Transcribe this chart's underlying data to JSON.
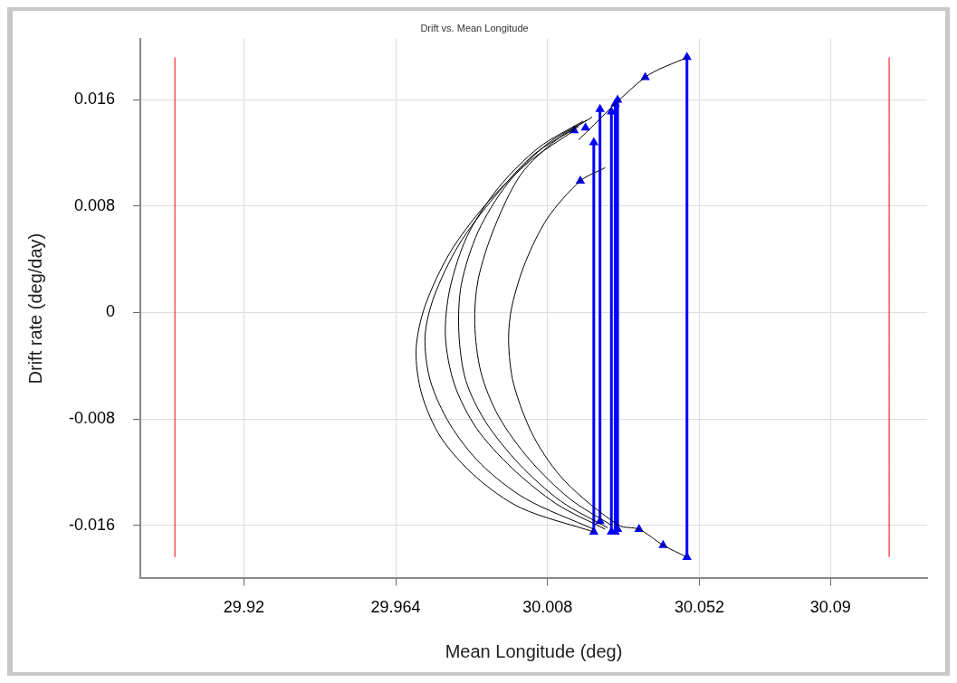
{
  "chart_data": {
    "type": "line",
    "title": "Drift vs. Mean Longitude",
    "xlabel": "Mean Longitude (deg)",
    "ylabel": "Drift rate (deg/day)",
    "xlim": [
      29.89,
      30.118
    ],
    "ylim": [
      -0.02,
      0.0206
    ],
    "xticks": [
      29.92,
      29.964,
      30.008,
      30.052,
      30.09
    ],
    "yticks": [
      -0.016,
      -0.008,
      0,
      0.008,
      0.016
    ],
    "grid": true,
    "legend": false,
    "marker": "none",
    "line_style": "solid",
    "series": [
      {
        "color": "#ff0000",
        "x": [
          29.9,
          29.9
        ],
        "values": [
          0.0192,
          -0.0184
        ]
      },
      {
        "color": "#ff0000",
        "x": [
          30.107,
          30.107
        ],
        "values": [
          0.0192,
          -0.0184
        ]
      },
      {
        "color": "#000000",
        "x": [
          30.0157,
          30.0029,
          29.99,
          29.9797,
          29.9725,
          29.9699,
          29.9715,
          29.9771,
          29.9874,
          30.0003,
          30.0214
        ],
        "values": [
          0.0137,
          0.0114,
          0.0081,
          0.0045,
          0.0005,
          -0.0028,
          -0.0061,
          -0.0094,
          -0.0124,
          -0.0147,
          -0.0165
        ]
      },
      {
        "color": "#000000",
        "x": [
          30.017,
          30.0041,
          29.9926,
          29.9823,
          29.9751,
          29.9725,
          29.974,
          29.9797,
          29.9887,
          30.0016,
          30.0214
        ],
        "values": [
          0.014,
          0.0119,
          0.0087,
          0.0051,
          0.0012,
          -0.0018,
          -0.0051,
          -0.0084,
          -0.0114,
          -0.014,
          -0.0163
        ]
      },
      {
        "color": "#000000",
        "x": [
          30.0183,
          30.0054,
          29.9938,
          29.9848,
          29.9797,
          29.9784,
          29.981,
          29.9874,
          29.9977,
          30.0106,
          30.0247
        ],
        "values": [
          0.0144,
          0.0124,
          0.0094,
          0.0058,
          0.0018,
          -0.0018,
          -0.0054,
          -0.0087,
          -0.0117,
          -0.0144,
          -0.0163
        ]
      },
      {
        "color": "#000000",
        "x": [
          30.0196,
          30.008,
          29.9964,
          29.9879,
          29.983,
          29.9823,
          29.9843,
          29.99,
          29.9998,
          30.0119,
          30.0255
        ],
        "values": [
          0.0145,
          0.0127,
          0.0097,
          0.0061,
          0.0021,
          -0.0015,
          -0.0051,
          -0.0082,
          -0.0114,
          -0.0142,
          -0.0162
        ]
      },
      {
        "color": "#000000",
        "x": [
          30.0209,
          30.0106,
          30.0003,
          29.9926,
          29.9879,
          29.9869,
          29.9887,
          29.9938,
          30.0029,
          30.0144,
          30.0265
        ],
        "values": [
          0.0147,
          0.013,
          0.0104,
          0.0064,
          0.0025,
          -0.0008,
          -0.0045,
          -0.0078,
          -0.0111,
          -0.014,
          -0.016
        ]
      },
      {
        "color": "#000000",
        "x": [
          30.0247,
          30.0175,
          30.008,
          30.0016,
          29.9977,
          29.9967,
          29.9982,
          30.0041,
          30.0131,
          30.0286,
          30.0345,
          30.0415,
          30.0484
        ],
        "values": [
          0.0109,
          0.0099,
          0.0071,
          0.0038,
          0.0005,
          -0.0021,
          -0.0054,
          -0.0094,
          -0.0127,
          -0.016,
          -0.0163,
          -0.0175,
          -0.0184
        ]
      },
      {
        "color": "#000000",
        "x": [
          30.017,
          30.0363,
          30.0484
        ],
        "values": [
          0.013,
          0.0177,
          0.0192
        ]
      },
      {
        "color": "#0000ff",
        "marker": "triangle",
        "x": [
          30.0214,
          30.0214
        ],
        "values": [
          0.0128,
          -0.0165
        ]
      },
      {
        "color": "#0000ff",
        "marker": "triangle",
        "x": [
          30.0232,
          30.0232
        ],
        "values": [
          0.0153,
          -0.0157
        ]
      },
      {
        "color": "#0000ff",
        "marker": "triangle",
        "x": [
          30.0265,
          30.0265
        ],
        "values": [
          0.0151,
          -0.0165
        ]
      },
      {
        "color": "#0000ff",
        "marker": "triangle",
        "x": [
          30.0276,
          30.0276
        ],
        "values": [
          0.0157,
          -0.0165
        ]
      },
      {
        "color": "#0000ff",
        "marker": "triangle",
        "x": [
          30.0283,
          30.0283
        ],
        "values": [
          0.016,
          -0.0163
        ]
      },
      {
        "color": "#0000ff",
        "marker": "triangle",
        "x": [
          30.0484,
          30.0484
        ],
        "values": [
          0.0192,
          -0.0184
        ]
      },
      {
        "color": "#0000ff",
        "type": "scatter",
        "marker": "triangle",
        "x": [
          30.0157,
          30.0175,
          30.019,
          30.0363,
          30.0345,
          30.0415
        ],
        "values": [
          0.0137,
          0.0099,
          0.0139,
          0.0177,
          -0.0163,
          -0.0175
        ]
      }
    ]
  }
}
